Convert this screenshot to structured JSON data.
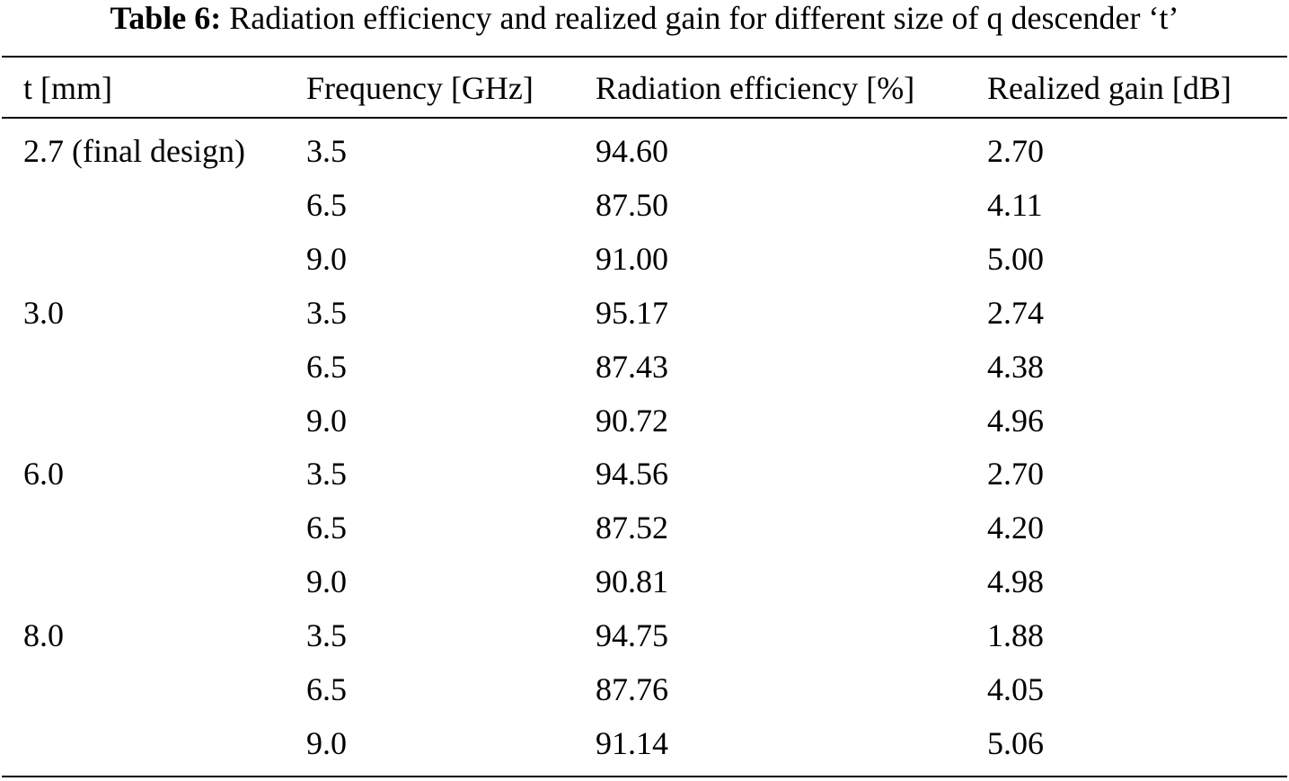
{
  "caption": {
    "label": "Table 6:",
    "text": "Radiation efficiency and realized gain for different size of q descender ‘t’"
  },
  "table": {
    "headers": [
      "t [mm]",
      "Frequency [GHz]",
      "Radiation efficiency [%]",
      "Realized gain [dB]"
    ],
    "rows": [
      [
        "2.7 (final design)",
        "3.5",
        "94.60",
        "2.70"
      ],
      [
        "",
        "6.5",
        "87.50",
        "4.11"
      ],
      [
        "",
        "9.0",
        "91.00",
        "5.00"
      ],
      [
        "3.0",
        "3.5",
        "95.17",
        "2.74"
      ],
      [
        "",
        "6.5",
        "87.43",
        "4.38"
      ],
      [
        "",
        "9.0",
        "90.72",
        "4.96"
      ],
      [
        "6.0",
        "3.5",
        "94.56",
        "2.70"
      ],
      [
        "",
        "6.5",
        "87.52",
        "4.20"
      ],
      [
        "",
        "9.0",
        "90.81",
        "4.98"
      ],
      [
        "8.0",
        "3.5",
        "94.75",
        "1.88"
      ],
      [
        "",
        "6.5",
        "87.76",
        "4.05"
      ],
      [
        "",
        "9.0",
        "91.14",
        "5.06"
      ]
    ]
  }
}
